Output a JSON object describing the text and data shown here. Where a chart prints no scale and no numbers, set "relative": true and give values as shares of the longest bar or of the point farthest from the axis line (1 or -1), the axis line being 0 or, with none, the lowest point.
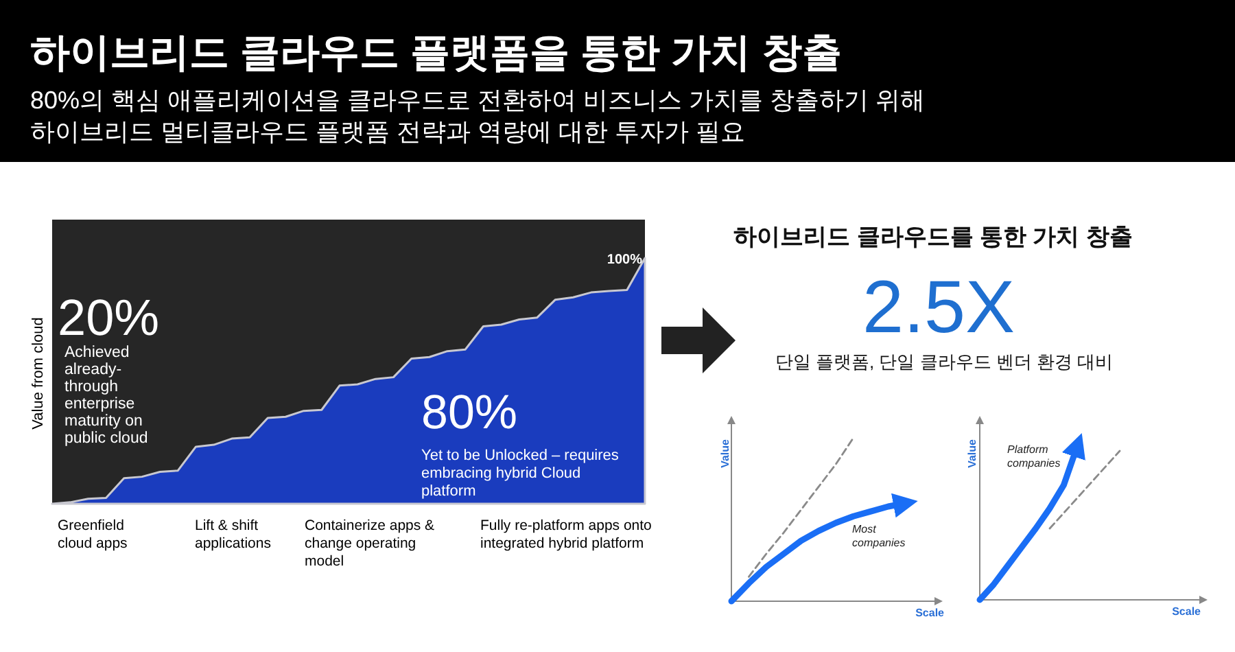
{
  "chart_data": [
    {
      "type": "area",
      "title": "하이브리드 클라우드 플랫폼을 통한 가치 창출",
      "subtitle": "80%의 핵심 애플리케이션을 클라우드로 전환하여 비즈니스 가치를 창출하기 위해\n하이브리드 멀티클라우드 플랫폼 전략과 역량에 대한 투자가 필요",
      "ylabel": "Value from cloud",
      "relative": true,
      "categories": [
        null,
        null,
        null,
        null,
        null,
        null,
        null,
        null,
        null,
        null,
        null,
        null,
        null,
        null,
        null,
        null,
        null,
        null,
        null,
        null,
        null,
        null,
        null,
        null,
        null,
        null,
        null,
        null,
        null,
        null,
        null,
        null,
        null,
        null
      ],
      "series": [
        {
          "color": "#1a3cbe",
          "values": [
            0,
            0.006,
            0.02,
            0.024,
            0.104,
            0.11,
            0.13,
            0.135,
            0.232,
            0.24,
            0.265,
            0.27,
            0.349,
            0.354,
            0.378,
            0.382,
            0.481,
            0.486,
            0.508,
            0.515,
            0.591,
            0.597,
            0.621,
            0.628,
            0.722,
            0.729,
            0.75,
            0.758,
            0.83,
            0.84,
            0.86,
            0.866,
            0.87,
            1
          ]
        }
      ],
      "annotations": [
        "100%",
        "20%",
        "Achieved\nalready-\nthrough\nenterprise\nmaturity on\npublic cloud",
        "80%",
        "Yet to be Unlocked – requires\nembracing hybrid Cloud\nplatform",
        "Greenfield\ncloud apps",
        "Lift & shift\napplications",
        "Containerize apps &\nchange operating\nmodel",
        "Fully re-platform apps onto\nintegrated hybrid platform"
      ]
    },
    {
      "type": "other",
      "title": "하이브리드 클라우드를 통한 가치 창출",
      "annotations": [
        "2.5X",
        "단일 플랫폼, 단일 클라우드 벤더 환경 대비"
      ]
    },
    {
      "type": "line",
      "xlabel": "Scale",
      "ylabel": "Value",
      "relative": true,
      "categories": [
        null,
        null,
        null,
        null,
        null,
        null,
        null,
        null,
        null,
        null,
        null
      ],
      "series": [
        {
          "color": "#1a6ef5",
          "line_style": "solid",
          "values": [
            0,
            0.11,
            0.21,
            0.29,
            0.37,
            0.43,
            0.48,
            0.52,
            0.55,
            0.58,
            0.6
          ]
        },
        {
          "color": "#8a8a8a",
          "line_style": "dashed",
          "values": [
            null,
            0.15,
            0.29,
            0.42,
            0.56,
            0.7,
            0.84,
            1,
            null,
            null,
            null
          ]
        }
      ],
      "annotations": [
        "Most\ncompanies"
      ]
    },
    {
      "type": "line",
      "xlabel": "Scale",
      "ylabel": "Value",
      "relative": true,
      "categories": [
        null,
        null,
        null,
        null,
        null,
        null,
        null,
        null,
        null,
        null,
        null
      ],
      "series": [
        {
          "color": "#1a6ef5",
          "line_style": "solid",
          "values": [
            0,
            0.1,
            0.22,
            0.34,
            0.46,
            0.59,
            0.74,
            1,
            null,
            null,
            null
          ]
        },
        {
          "color": "#8a8a8a",
          "line_style": "dashed",
          "values": [
            null,
            null,
            null,
            null,
            null,
            0.46,
            0.56,
            0.66,
            0.76,
            0.86,
            0.96
          ]
        }
      ],
      "annotations": [
        "Platform\ncompanies"
      ]
    }
  ]
}
